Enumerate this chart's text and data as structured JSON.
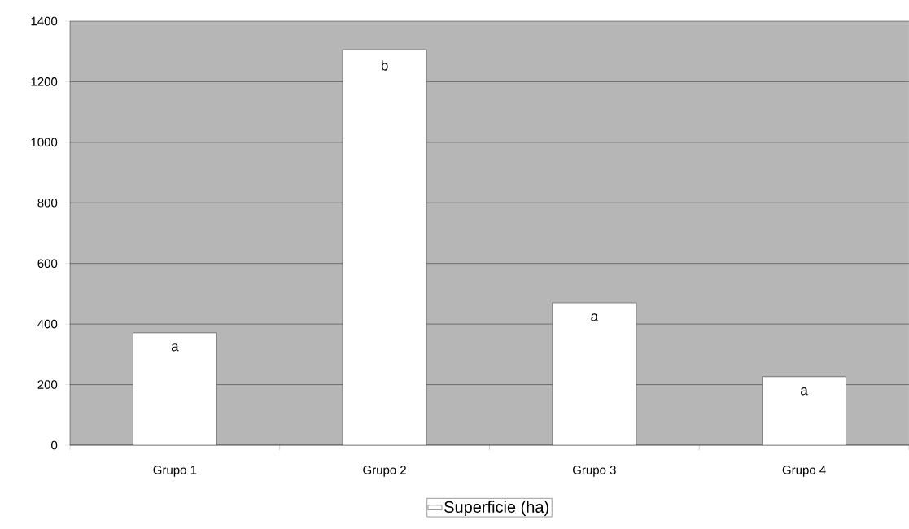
{
  "chart_data": {
    "type": "bar",
    "categories": [
      "Grupo 1",
      "Grupo 2",
      "Grupo 3",
      "Grupo 4"
    ],
    "series": [
      {
        "name": "Superficie (ha)",
        "color": "#ffffff",
        "values": [
          371,
          1306,
          470,
          226
        ]
      }
    ],
    "ylim": [
      0,
      1400
    ],
    "yticks": [
      0,
      200,
      400,
      600,
      800,
      1000,
      1200,
      1400
    ],
    "grid": "y",
    "legend": "bottom",
    "annotations": [
      {
        "text": "a",
        "x": "Grupo 1",
        "y": 371
      },
      {
        "text": "b",
        "x": "Grupo 2",
        "y": 1306
      },
      {
        "text": "a",
        "x": "Grupo 3",
        "y": 470
      },
      {
        "text": "a",
        "x": "Grupo 4",
        "y": 226
      }
    ]
  }
}
